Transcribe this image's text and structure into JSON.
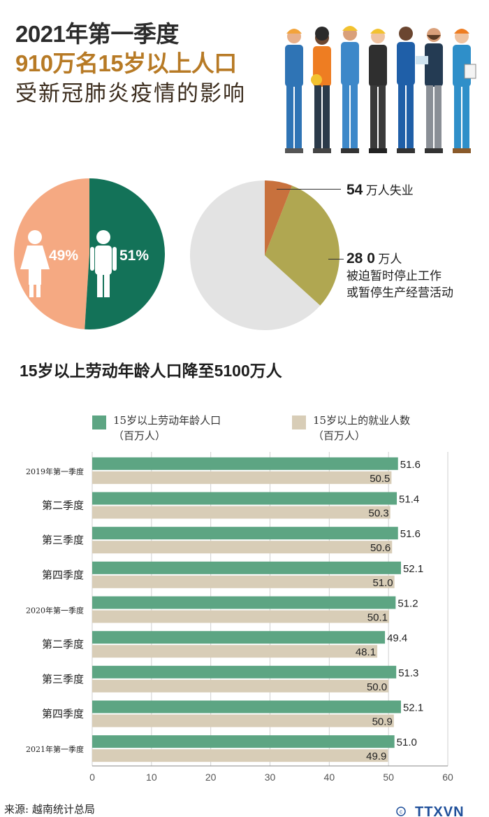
{
  "header": {
    "line1": "2021年第一季度",
    "line2": "910万名15岁以上人口",
    "line3": "受新冠肺炎疫情的影响"
  },
  "gender": {
    "female_pct": "49%",
    "male_pct": "51%",
    "female_value": 49,
    "male_value": 51,
    "female_color": "#f5a982",
    "male_color": "#137258"
  },
  "impact": {
    "unemployed_number": "54",
    "unemployed_text": "万人失业",
    "suspended_number": "28 0",
    "suspended_unit": "万人",
    "suspended_desc_1": "被迫暂时停止工作",
    "suspended_desc_2": "或暂停生产经营活动",
    "unemployed_value": 54,
    "suspended_value": 280,
    "total_value": 910,
    "colors": {
      "unemployed": "#c8713d",
      "suspended": "#b0a751",
      "rest": "#e3e3e3"
    }
  },
  "chart_title": "15岁以上劳动年龄人口降至5100万人",
  "legend": {
    "series1_line1": "15岁以上劳动年龄人口",
    "series1_line2": "（百万人）",
    "series2_line1": "15岁以上的就业人数",
    "series2_line2": "（百万人）"
  },
  "chart_data": {
    "type": "bar",
    "orientation": "horizontal",
    "title": "15岁以上劳动年龄人口降至5100万人",
    "categories": [
      "2019年第一季度",
      "第二季度",
      "第三季度",
      "第四季度",
      "2020年第一季度",
      "第二季度",
      "第三季度",
      "第四季度",
      "2021年第一季度"
    ],
    "series": [
      {
        "name": "15岁以上劳动年龄人口（百万人）",
        "color": "#5da583",
        "values": [
          51.6,
          51.4,
          51.6,
          52.1,
          51.2,
          49.4,
          51.3,
          52.1,
          51.0
        ]
      },
      {
        "name": "15岁以上的就业人数（百万人）",
        "color": "#d8cdb7",
        "values": [
          50.5,
          50.3,
          50.6,
          51.0,
          50.1,
          48.1,
          50.0,
          50.9,
          49.9
        ]
      }
    ],
    "xlim": [
      0,
      60
    ],
    "xticks": [
      0,
      10,
      20,
      30,
      40,
      50,
      60
    ],
    "grid": true
  },
  "source": "来源: 越南统计总局",
  "logo_text": "© TTXVN"
}
